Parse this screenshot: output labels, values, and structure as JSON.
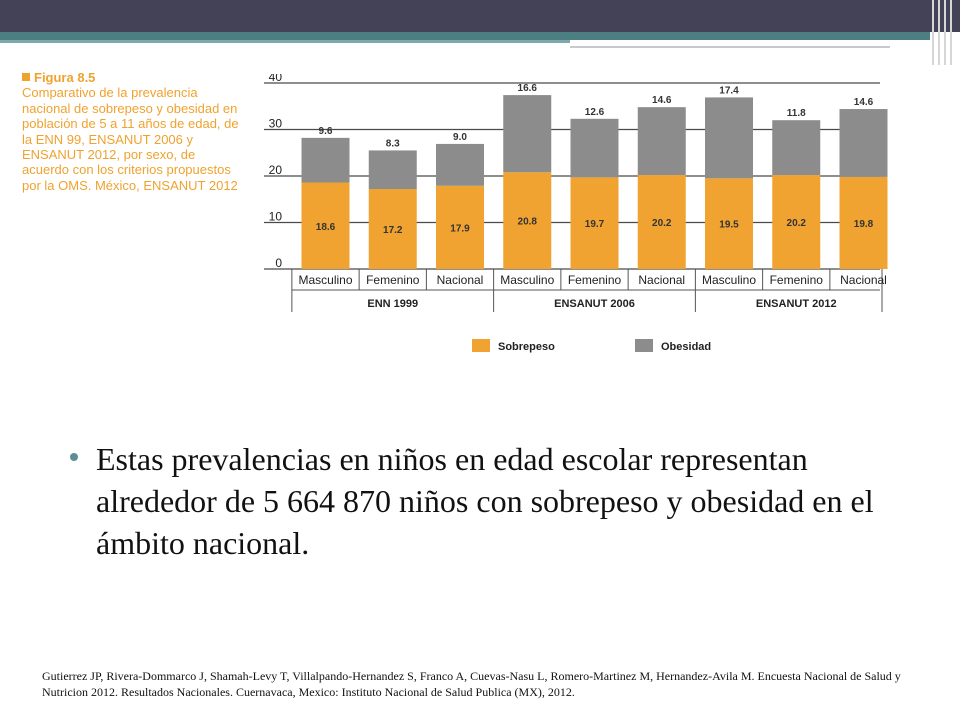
{
  "figure": {
    "label": "Figura 8.5",
    "caption": "Comparativo de la prevalencia nacional de sobrepeso y obesidad en población de 5 a 11 años de edad, de la ENN 99, ENSANUT 2006 y ENSANUT 2012, por sexo, de acuerdo con los criterios propuestos por la OMS. México, ENSANUT 2012"
  },
  "chart_data": {
    "type": "bar",
    "stacked": true,
    "ylim": [
      0,
      40
    ],
    "yticks": [
      0,
      10,
      20,
      30,
      40
    ],
    "categories": [
      "Masculino",
      "Femenino",
      "Nacional",
      "Masculino",
      "Femenino",
      "Nacional",
      "Masculino",
      "Femenino",
      "Nacional"
    ],
    "groups": [
      {
        "label": "ENN 1999",
        "span": [
          0,
          2
        ]
      },
      {
        "label": "ENSANUT 2006",
        "span": [
          3,
          5
        ]
      },
      {
        "label": "ENSANUT 2012",
        "span": [
          6,
          8
        ]
      }
    ],
    "series": [
      {
        "name": "Sobrepeso",
        "color": "#f0a330",
        "values": [
          18.6,
          17.2,
          17.9,
          20.8,
          19.7,
          20.2,
          19.5,
          20.2,
          19.8
        ]
      },
      {
        "name": "Obesidad",
        "color": "#8c8c8c",
        "values": [
          9.6,
          8.3,
          9.0,
          16.6,
          12.6,
          14.6,
          17.4,
          11.8,
          14.6
        ]
      }
    ],
    "value_labels": {
      "Sobrepeso": [
        "18.6",
        "17.2",
        "17.9",
        "20.8",
        "19.7",
        "20.2",
        "19.5",
        "20.2",
        "19.8"
      ],
      "Obesidad": [
        "9.6",
        "8.3",
        "9.0",
        "16.6",
        "12.6",
        "14.6",
        "17.4",
        "11.8",
        "14.6"
      ]
    },
    "legend": "bottom",
    "grid": true
  },
  "bullet": {
    "text": "Estas prevalencias en niños en edad escolar representan alrededor de 5 664 870 niños con sobrepeso y obesidad en el ámbito nacional."
  },
  "reference": {
    "text": "Gutierrez JP, Rivera-Dommarco J, Shamah-Levy T, Villalpando-Hernandez S, Franco A, Cuevas-Nasu L, Romero-Martinez M, Hernandez-Avila M. Encuesta Nacional de Salud y Nutricion 2012. Resultados Nacionales. Cuernavaca, Mexico: Instituto Nacional de Salud Publica (MX), 2012."
  },
  "colors": {
    "header": "#434257",
    "accent_teal": "#4c7f81",
    "caption_orange": "#f0a22e"
  }
}
